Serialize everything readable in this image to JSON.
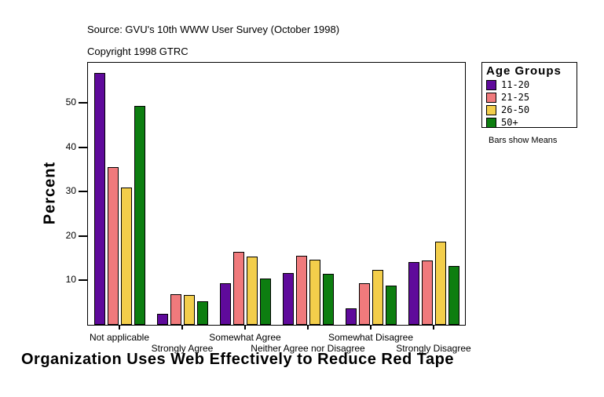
{
  "chart_data": {
    "type": "bar",
    "title": "Organization Uses Web Effectively to Reduce Red Tape",
    "source": "Source: GVU's 10th WWW User Survey (October 1998)",
    "copyright": "Copyright 1998 GTRC",
    "ylabel": "Percent",
    "yticks": [
      10,
      20,
      30,
      40,
      50
    ],
    "ylim": [
      0,
      59.1
    ],
    "grid": false,
    "note": "Bars show Means",
    "legend_title": "Age Groups",
    "legend_position": "right",
    "categories": [
      "Not applicable",
      "Strongly Agree",
      "Somewhat Agree",
      "Neither Agree nor Disagree",
      "Somewhat Disagree",
      "Strongly Disagree"
    ],
    "series": [
      {
        "name": "11-20",
        "color": "#5F0A9B",
        "values": [
          56.8,
          2.5,
          9.4,
          11.7,
          3.7,
          14.2
        ]
      },
      {
        "name": "21-25",
        "color": "#F07A7C",
        "values": [
          35.6,
          6.9,
          16.5,
          15.6,
          9.4,
          14.5
        ]
      },
      {
        "name": "26-50",
        "color": "#F3CE4B",
        "values": [
          31.0,
          6.7,
          15.4,
          14.6,
          12.4,
          18.8
        ]
      },
      {
        "name": "50+",
        "color": "#0D7E10",
        "values": [
          49.4,
          5.3,
          10.4,
          11.5,
          8.8,
          13.3
        ]
      }
    ]
  }
}
